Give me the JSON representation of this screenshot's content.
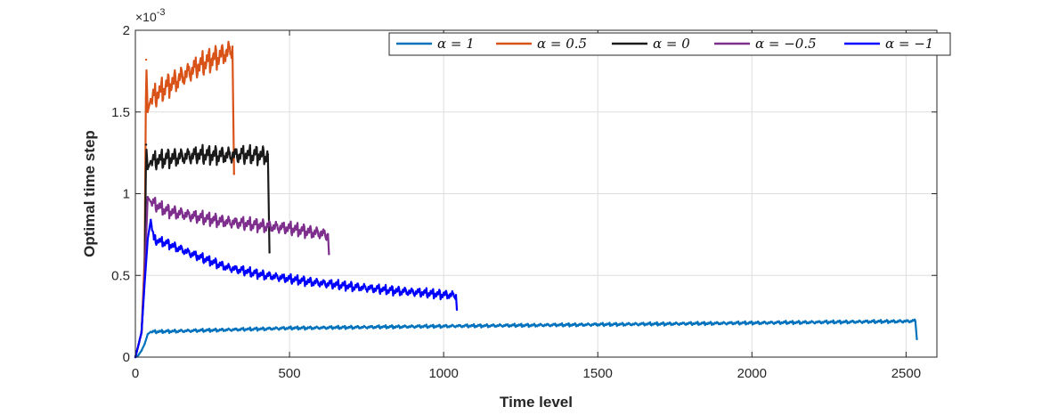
{
  "chart_data": {
    "type": "line",
    "title": "",
    "xlabel": "Time level",
    "ylabel": "Optimal time step",
    "y_multiplier": "×10",
    "y_multiplier_exp": "-3",
    "xlim": [
      0,
      2600
    ],
    "ylim": [
      0,
      2
    ],
    "xticks": [
      0,
      500,
      1000,
      1500,
      2000,
      2500
    ],
    "yticks": [
      0,
      0.5,
      1,
      1.5,
      2
    ],
    "xtick_labels": [
      "0",
      "500",
      "1000",
      "1500",
      "2000",
      "2500"
    ],
    "ytick_labels": [
      "0",
      "0.5",
      "1",
      "1.5",
      "2"
    ],
    "grid": true,
    "legend_position": "top-right, horizontal",
    "series": [
      {
        "name": "α = 1",
        "color": "#0072BD",
        "x": [
          0,
          5,
          10,
          20,
          30,
          40,
          50,
          100,
          500,
          1000,
          1500,
          2000,
          2500,
          2530,
          2535
        ],
        "y": [
          0,
          0.003,
          0.012,
          0.04,
          0.08,
          0.14,
          0.155,
          0.158,
          0.178,
          0.19,
          0.2,
          0.21,
          0.22,
          0.222,
          0.11
        ]
      },
      {
        "name": "α = 0.5",
        "color": "#D95319",
        "x": [
          0,
          20,
          30,
          35,
          40,
          50,
          100,
          150,
          200,
          250,
          300,
          315,
          320
        ],
        "y": [
          0,
          0.15,
          0.6,
          1.82,
          1.5,
          1.58,
          1.66,
          1.72,
          1.78,
          1.83,
          1.87,
          1.9,
          1.12
        ]
      },
      {
        "name": "α = 0",
        "color": "#1A1A1A",
        "x": [
          0,
          20,
          30,
          35,
          40,
          50,
          100,
          200,
          300,
          400,
          430,
          435
        ],
        "y": [
          0,
          0.15,
          0.5,
          1.3,
          1.15,
          1.2,
          1.22,
          1.24,
          1.24,
          1.24,
          1.24,
          0.64
        ]
      },
      {
        "name": "α = −0.5",
        "color": "#7E2F8E",
        "x": [
          0,
          20,
          30,
          40,
          50,
          100,
          200,
          300,
          400,
          500,
          600,
          625,
          628
        ],
        "y": [
          0,
          0.15,
          0.5,
          0.98,
          0.95,
          0.9,
          0.86,
          0.83,
          0.81,
          0.79,
          0.76,
          0.75,
          0.63
        ]
      },
      {
        "name": "α = −1",
        "color": "#0000FF",
        "x": [
          0,
          20,
          30,
          40,
          50,
          60,
          100,
          200,
          300,
          400,
          500,
          600,
          700,
          800,
          900,
          1000,
          1040,
          1043
        ],
        "y": [
          0,
          0.15,
          0.45,
          0.72,
          0.84,
          0.72,
          0.7,
          0.62,
          0.55,
          0.51,
          0.48,
          0.455,
          0.435,
          0.415,
          0.4,
          0.385,
          0.38,
          0.29
        ]
      }
    ]
  }
}
